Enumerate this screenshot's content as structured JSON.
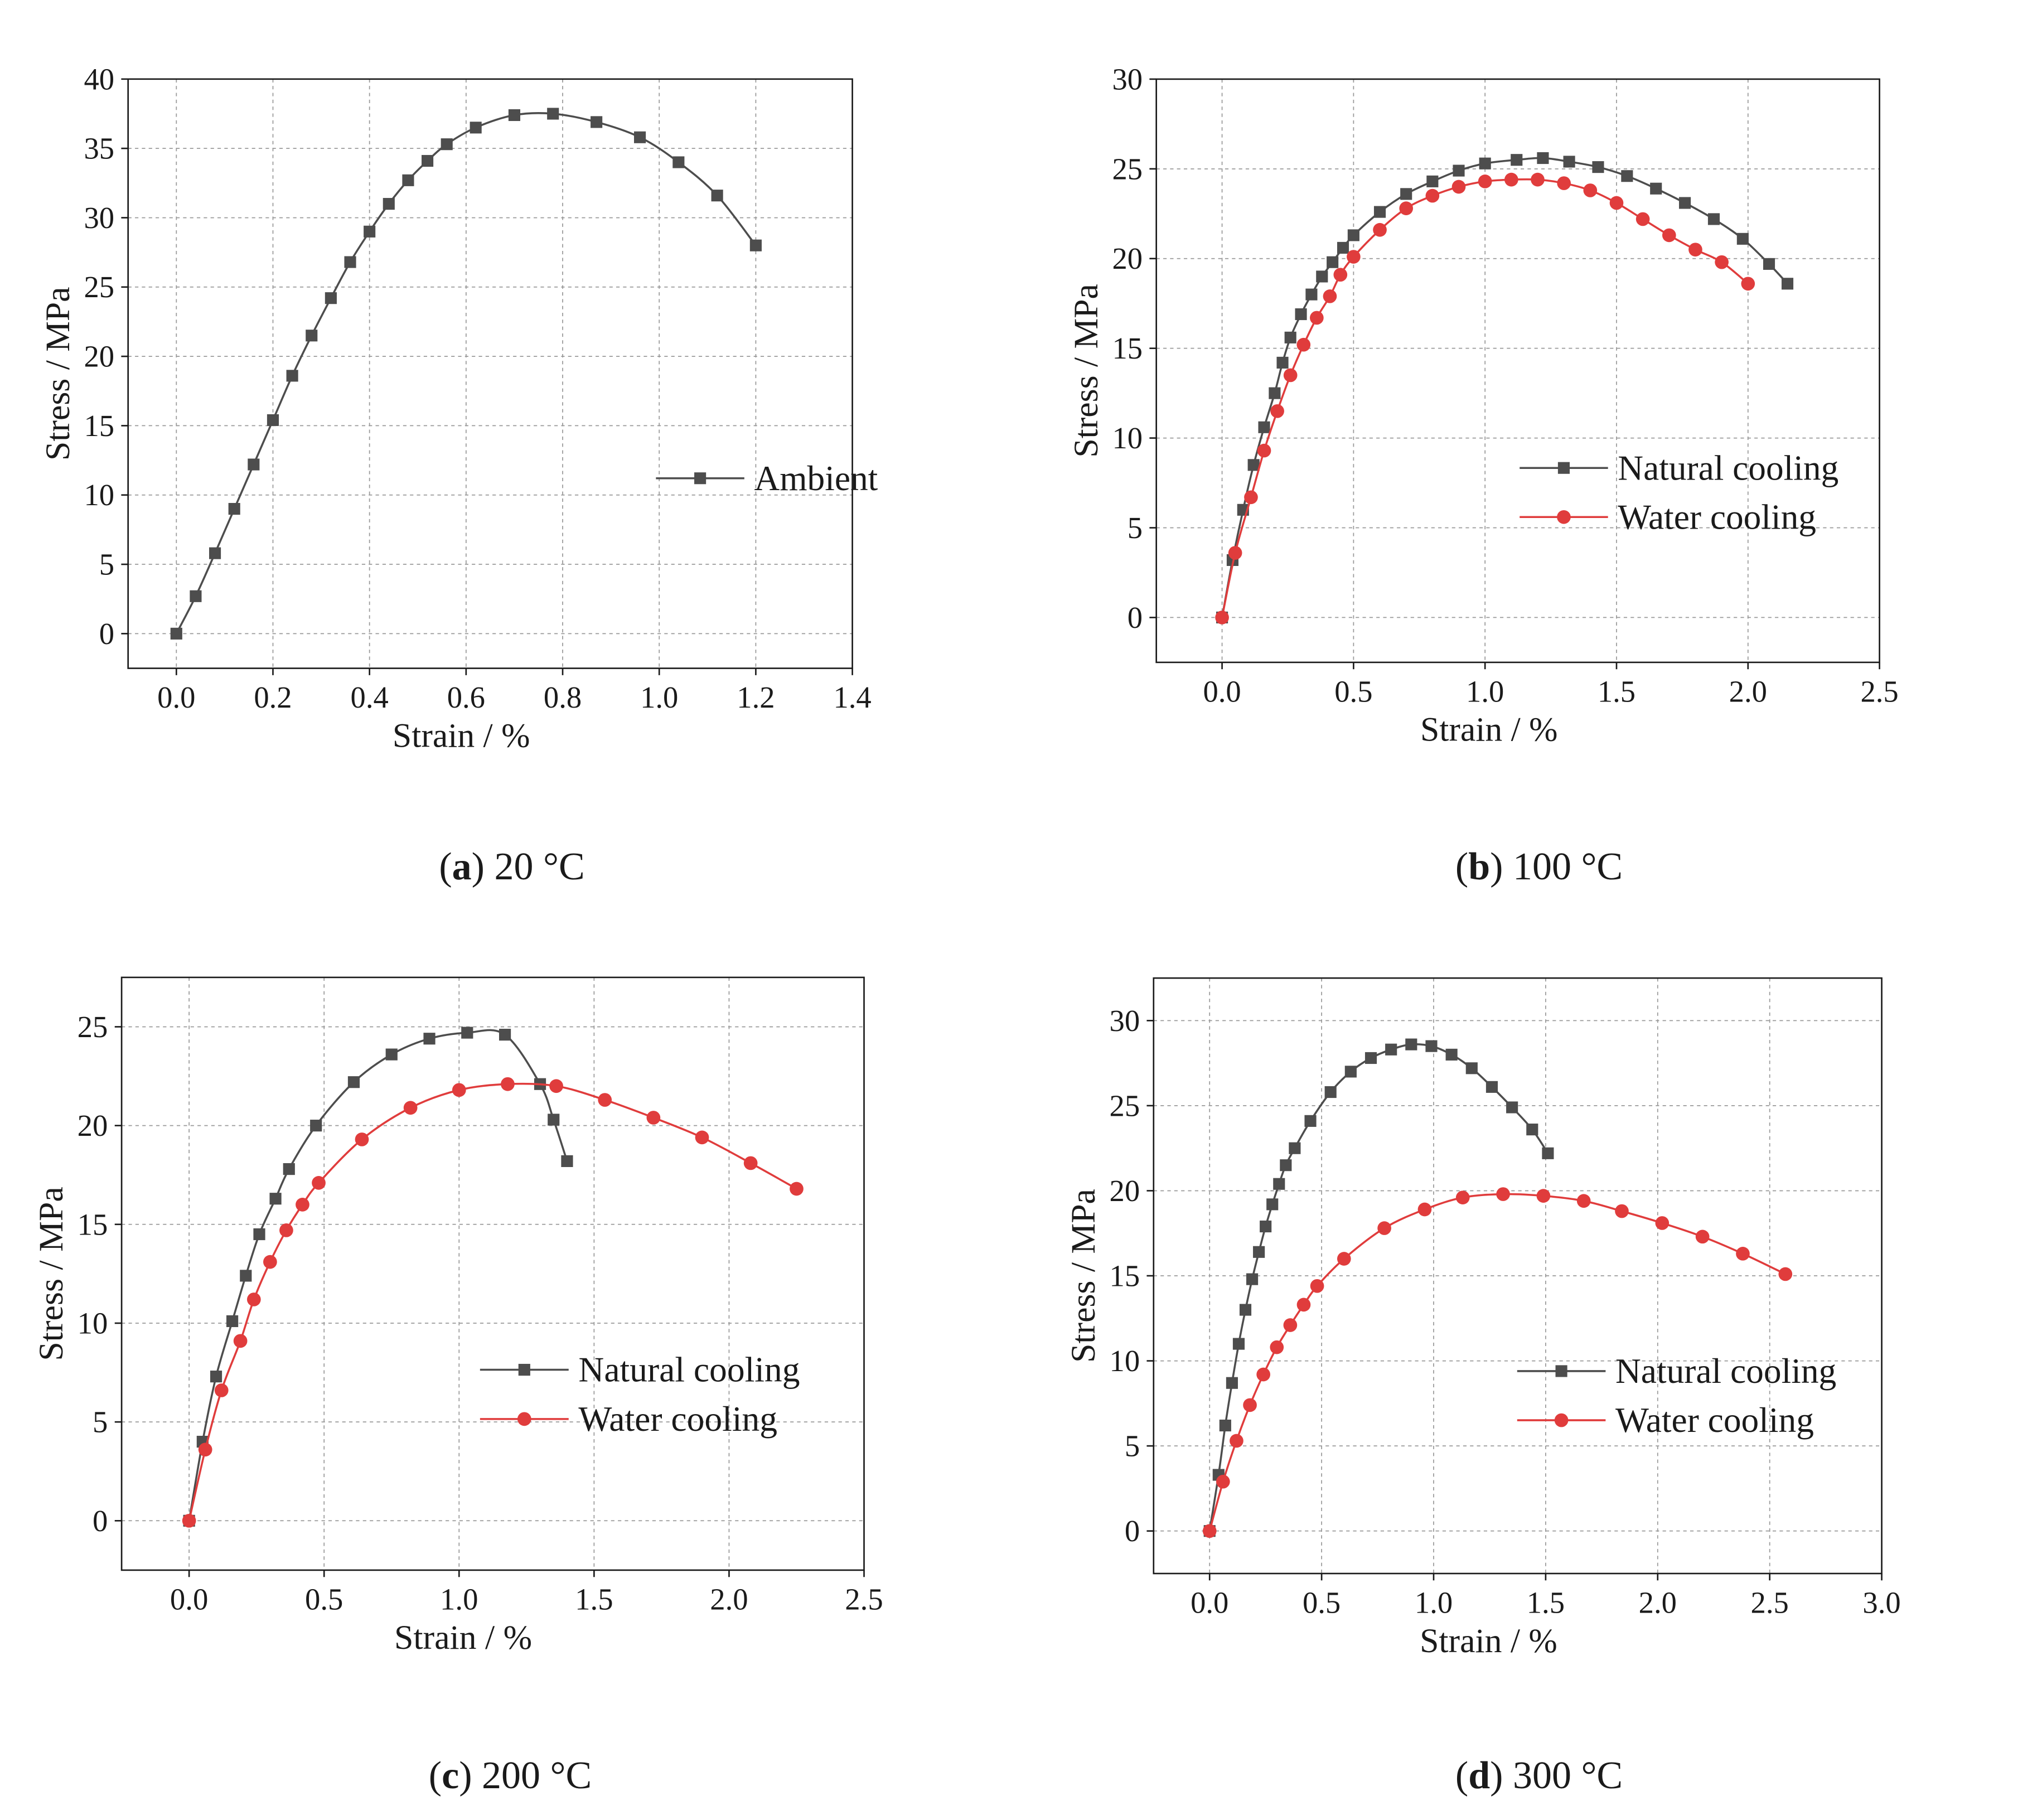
{
  "chart_data": [
    {
      "type": "line",
      "panel": "a",
      "caption": {
        "letter": "a",
        "text": "20 °C"
      },
      "title": "",
      "xlabel": "Strain / %",
      "ylabel": "Stress / MPa",
      "xlim": [
        -0.1,
        1.4
      ],
      "ylim": [
        -2.5,
        40
      ],
      "xticks": [
        "0.0",
        "0.2",
        "0.4",
        "0.6",
        "0.8",
        "1.0",
        "1.2",
        "1.4"
      ],
      "xtick_values": [
        0,
        0.2,
        0.4,
        0.6,
        0.8,
        1.0,
        1.2,
        1.4
      ],
      "yticks": [
        "0",
        "5",
        "10",
        "15",
        "20",
        "25",
        "30",
        "35",
        "40"
      ],
      "ytick_values": [
        0,
        5,
        10,
        15,
        20,
        25,
        30,
        35,
        40
      ],
      "grid": true,
      "legend_position": "right",
      "series": [
        {
          "name": "Ambient",
          "color": "#4d4d4d",
          "marker": "square",
          "x": [
            0,
            0.04,
            0.08,
            0.12,
            0.16,
            0.2,
            0.24,
            0.28,
            0.32,
            0.36,
            0.4,
            0.44,
            0.48,
            0.52,
            0.56,
            0.62,
            0.7,
            0.78,
            0.87,
            0.96,
            1.04,
            1.12,
            1.2
          ],
          "y": [
            0,
            2.7,
            5.8,
            9.0,
            12.2,
            15.4,
            18.6,
            21.5,
            24.2,
            26.8,
            29.0,
            31.0,
            32.7,
            34.1,
            35.3,
            36.5,
            37.4,
            37.5,
            36.9,
            35.8,
            34.0,
            31.6,
            28.0
          ]
        }
      ]
    },
    {
      "type": "line",
      "panel": "b",
      "caption": {
        "letter": "b",
        "text": "100 °C"
      },
      "title": "",
      "xlabel": "Strain / %",
      "ylabel": "Stress / MPa",
      "xlim": [
        -0.25,
        2.5
      ],
      "ylim": [
        -2.5,
        30
      ],
      "xticks": [
        "0.0",
        "0.5",
        "1.0",
        "1.5",
        "2.0",
        "2.5"
      ],
      "xtick_values": [
        0,
        0.5,
        1.0,
        1.5,
        2.0,
        2.5
      ],
      "yticks": [
        "0",
        "5",
        "10",
        "15",
        "20",
        "25",
        "30"
      ],
      "ytick_values": [
        0,
        5,
        10,
        15,
        20,
        25,
        30
      ],
      "grid": true,
      "legend_position": "right",
      "series": [
        {
          "name": "Natural cooling",
          "color": "#4d4d4d",
          "marker": "square",
          "x": [
            0,
            0.04,
            0.08,
            0.12,
            0.16,
            0.2,
            0.23,
            0.26,
            0.3,
            0.34,
            0.38,
            0.42,
            0.46,
            0.5,
            0.6,
            0.7,
            0.8,
            0.9,
            1.0,
            1.12,
            1.22,
            1.32,
            1.43,
            1.54,
            1.65,
            1.76,
            1.87,
            1.98,
            2.08,
            2.15
          ],
          "y": [
            0,
            3.2,
            6.0,
            8.5,
            10.6,
            12.5,
            14.2,
            15.6,
            16.9,
            18.0,
            19.0,
            19.8,
            20.6,
            21.3,
            22.6,
            23.6,
            24.3,
            24.9,
            25.3,
            25.5,
            25.6,
            25.4,
            25.1,
            24.6,
            23.9,
            23.1,
            22.2,
            21.1,
            19.7,
            18.6
          ]
        },
        {
          "name": "Water cooling",
          "color": "#e03c3c",
          "marker": "circle",
          "x": [
            0,
            0.05,
            0.11,
            0.16,
            0.21,
            0.26,
            0.31,
            0.36,
            0.41,
            0.45,
            0.5,
            0.6,
            0.7,
            0.8,
            0.9,
            1.0,
            1.1,
            1.2,
            1.3,
            1.4,
            1.5,
            1.6,
            1.7,
            1.8,
            1.9,
            2.0
          ],
          "y": [
            0,
            3.6,
            6.7,
            9.3,
            11.5,
            13.5,
            15.2,
            16.7,
            17.9,
            19.1,
            20.1,
            21.6,
            22.8,
            23.5,
            24.0,
            24.3,
            24.4,
            24.4,
            24.2,
            23.8,
            23.1,
            22.2,
            21.3,
            20.5,
            19.8,
            18.6
          ]
        }
      ]
    },
    {
      "type": "line",
      "panel": "c",
      "caption": {
        "letter": "c",
        "text": "200 °C"
      },
      "title": "",
      "xlabel": "Strain / %",
      "ylabel": "Stress / MPa",
      "xlim": [
        -0.25,
        2.5
      ],
      "ylim": [
        -2.5,
        27.5
      ],
      "xticks": [
        "0.0",
        "0.5",
        "1.0",
        "1.5",
        "2.0",
        "2.5"
      ],
      "xtick_values": [
        0,
        0.5,
        1.0,
        1.5,
        2.0,
        2.5
      ],
      "yticks": [
        "0",
        "5",
        "10",
        "15",
        "20",
        "25"
      ],
      "ytick_values": [
        0,
        5,
        10,
        15,
        20,
        25
      ],
      "grid": true,
      "legend_position": "right",
      "series": [
        {
          "name": "Natural cooling",
          "color": "#4d4d4d",
          "marker": "square",
          "x": [
            0,
            0.05,
            0.1,
            0.16,
            0.21,
            0.26,
            0.32,
            0.37,
            0.47,
            0.61,
            0.75,
            0.89,
            1.03,
            1.17,
            1.3,
            1.35,
            1.4
          ],
          "y": [
            0,
            4.0,
            7.3,
            10.1,
            12.4,
            14.5,
            16.3,
            17.8,
            20.0,
            22.2,
            23.6,
            24.4,
            24.7,
            24.6,
            22.1,
            20.3,
            18.2
          ]
        },
        {
          "name": "Water cooling",
          "color": "#e03c3c",
          "marker": "circle",
          "x": [
            0,
            0.06,
            0.12,
            0.19,
            0.24,
            0.3,
            0.36,
            0.42,
            0.48,
            0.64,
            0.82,
            1.0,
            1.18,
            1.36,
            1.54,
            1.72,
            1.9,
            2.08,
            2.25
          ],
          "y": [
            0,
            3.6,
            6.6,
            9.1,
            11.2,
            13.1,
            14.7,
            16.0,
            17.1,
            19.3,
            20.9,
            21.8,
            22.1,
            22.0,
            21.3,
            20.4,
            19.4,
            18.1,
            16.8
          ]
        }
      ]
    },
    {
      "type": "line",
      "panel": "d",
      "caption": {
        "letter": "d",
        "text": "300 °C"
      },
      "title": "",
      "xlabel": "Strain / %",
      "ylabel": "Stress / MPa",
      "xlim": [
        -0.25,
        3.0
      ],
      "ylim": [
        -2.5,
        32.5
      ],
      "xticks": [
        "0.0",
        "0.5",
        "1.0",
        "1.5",
        "2.0",
        "2.5",
        "3.0"
      ],
      "xtick_values": [
        0,
        0.5,
        1.0,
        1.5,
        2.0,
        2.5,
        3.0
      ],
      "yticks": [
        "0",
        "5",
        "10",
        "15",
        "20",
        "25",
        "30"
      ],
      "ytick_values": [
        0,
        5,
        10,
        15,
        20,
        25,
        30
      ],
      "grid": true,
      "legend_position": "right",
      "series": [
        {
          "name": "Natural cooling",
          "color": "#4d4d4d",
          "marker": "square",
          "x": [
            0,
            0.04,
            0.07,
            0.1,
            0.13,
            0.16,
            0.19,
            0.22,
            0.25,
            0.28,
            0.31,
            0.34,
            0.38,
            0.45,
            0.54,
            0.63,
            0.72,
            0.81,
            0.9,
            0.99,
            1.08,
            1.17,
            1.26,
            1.35,
            1.44,
            1.51
          ],
          "y": [
            0,
            3.3,
            6.2,
            8.7,
            11.0,
            13.0,
            14.8,
            16.4,
            17.9,
            19.2,
            20.4,
            21.5,
            22.5,
            24.1,
            25.8,
            27.0,
            27.8,
            28.3,
            28.6,
            28.5,
            28.0,
            27.2,
            26.1,
            24.9,
            23.6,
            22.2
          ]
        },
        {
          "name": "Water cooling",
          "color": "#e03c3c",
          "marker": "circle",
          "x": [
            0,
            0.06,
            0.12,
            0.18,
            0.24,
            0.3,
            0.36,
            0.42,
            0.48,
            0.6,
            0.78,
            0.96,
            1.13,
            1.31,
            1.49,
            1.67,
            1.84,
            2.02,
            2.2,
            2.38,
            2.57
          ],
          "y": [
            0,
            2.9,
            5.3,
            7.4,
            9.2,
            10.8,
            12.1,
            13.3,
            14.4,
            16.0,
            17.8,
            18.9,
            19.6,
            19.8,
            19.7,
            19.4,
            18.8,
            18.1,
            17.3,
            16.3,
            15.1
          ]
        }
      ]
    }
  ]
}
